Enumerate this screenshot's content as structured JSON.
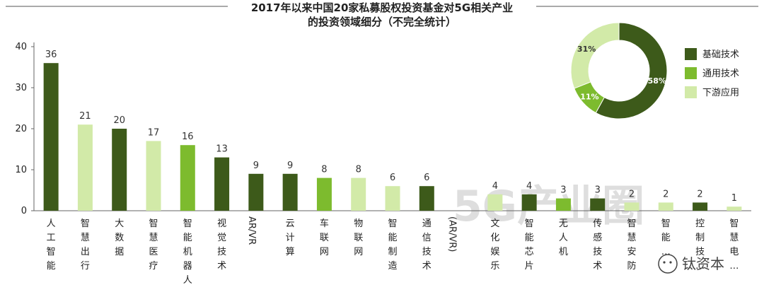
{
  "chart_data": {
    "type": "bar",
    "title": "2017年以来中国20家私募股权投资基金对5G相关产业",
    "subtitle": "的投资领域细分（不完全统计）",
    "ylim": [
      0,
      40
    ],
    "yticks": [
      0,
      10,
      20,
      30,
      40
    ],
    "grid": false,
    "categories": [
      "人工智能",
      "智慧出行",
      "大数据",
      "智慧医疗",
      "智能机器人",
      "视觉技术",
      "AR/VR",
      "云计算",
      "车联网",
      "物联网",
      "智能制造",
      "通信技术",
      "(AR/VR)",
      "文化娱乐",
      "智能芯片",
      "无人机",
      "传感技术",
      "智慧安防",
      "智能…",
      "控制技…",
      "智慧电…"
    ],
    "values": [
      36,
      21,
      20,
      17,
      16,
      13,
      9,
      9,
      8,
      8,
      6,
      6,
      null,
      4,
      4,
      3,
      3,
      2,
      2,
      2,
      1
    ],
    "value_labels": [
      "36",
      "21",
      "20",
      "17",
      "16",
      "13",
      "9",
      "9",
      "8",
      "8",
      "6",
      "6",
      "",
      "4",
      "4",
      "3",
      "3",
      "2",
      "2",
      "2",
      "1"
    ],
    "groups": [
      "基础技术",
      "下游应用",
      "基础技术",
      "下游应用",
      "通用技术",
      "基础技术",
      "基础技术",
      "基础技术",
      "通用技术",
      "下游应用",
      "下游应用",
      "基础技术",
      "",
      "下游应用",
      "基础技术",
      "通用技术",
      "基础技术",
      "下游应用",
      "下游应用",
      "基础技术",
      "下游应用"
    ],
    "donut": {
      "type": "pie",
      "slices": [
        {
          "name": "基础技术",
          "value": 58,
          "label": "58%"
        },
        {
          "name": "通用技术",
          "value": 11,
          "label": "11%"
        },
        {
          "name": "下游应用",
          "value": 31,
          "label": "31%"
        }
      ]
    },
    "legend": {
      "placement": "top-right",
      "entries": [
        "基础技术",
        "通用技术",
        "下游应用"
      ]
    },
    "colors": {
      "基础技术": "#3d5a1a",
      "通用技术": "#7dbb2e",
      "下游应用": "#d2eaa8"
    }
  },
  "watermark": {
    "text": "钛资本",
    "background_text": "5G产业圈"
  }
}
